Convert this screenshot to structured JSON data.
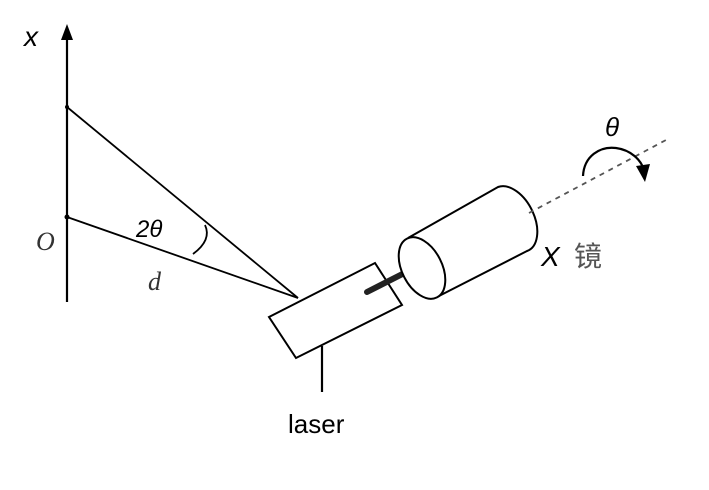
{
  "labels": {
    "axis": "x",
    "origin": "O",
    "angle": "2θ",
    "distance": "d",
    "rotation": "θ",
    "mirror_axis": "X",
    "mirror": "镜",
    "laser": "laser"
  },
  "colors": {
    "ink": "#000000",
    "soft_ink": "#333333",
    "dashed": "#666666"
  }
}
